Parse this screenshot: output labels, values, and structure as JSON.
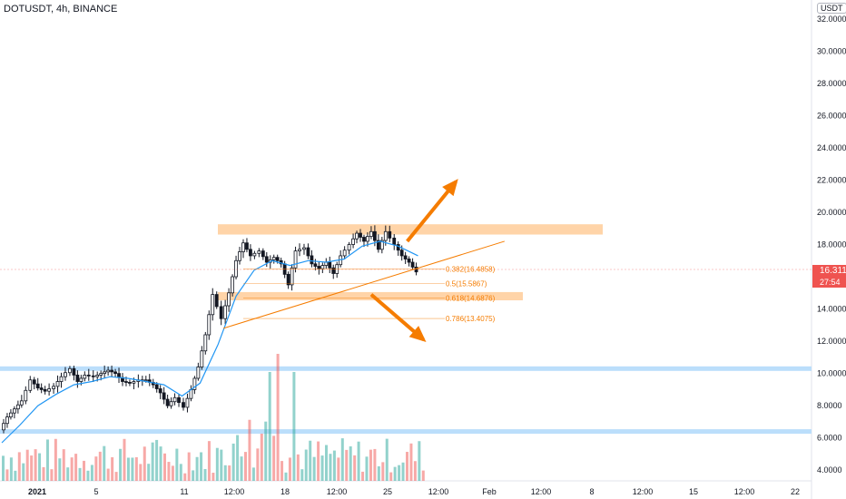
{
  "header": {
    "ticker": "DOTUSDT, 4h, BINANCE"
  },
  "price_axis": {
    "currency_badge": "USDT",
    "current_price": "16.3113",
    "countdown": "27:54",
    "top_label": "32.0000"
  },
  "colors": {
    "up": "#26a69a",
    "down": "#ef5350",
    "ma": "#2196f3",
    "zone": "#ffcc99",
    "support": "#bbdefb",
    "fib": "#f57c00",
    "arrow": "#f57c00"
  },
  "chart_data": {
    "type": "candlestick",
    "symbol": "DOTUSDT",
    "interval": "4h",
    "exchange": "BINANCE",
    "y_ticks": [
      "4.0000",
      "6.0000",
      "8.0000",
      "10.0000",
      "12.0000",
      "14.0000",
      "16.0000",
      "18.0000",
      "20.0000",
      "22.0000",
      "24.0000",
      "26.0000",
      "28.0000",
      "30.0000",
      "32.0000"
    ],
    "x_ticks": [
      "2021",
      "5",
      "11",
      "12:00",
      "18",
      "12:00",
      "25",
      "12:00",
      "Feb",
      "12:00",
      "8",
      "12:00",
      "15",
      "12:00",
      "22"
    ],
    "ylim": [
      3.0,
      33.0
    ],
    "resistance_zone": {
      "from": 18.9,
      "to": 19.2
    },
    "support_zone": {
      "from": 14.65,
      "to": 15.05
    },
    "support_lines": [
      10.3,
      6.4
    ],
    "trendline": {
      "start": {
        "x_day": 12.3,
        "y": 12.8
      },
      "end": {
        "x_day": 27.9,
        "y": 18.2
      }
    },
    "fib_levels": [
      {
        "label": "0.382(16.4858)",
        "value": 16.4858
      },
      {
        "label": "0.5(15.5867)",
        "value": 15.5867
      },
      {
        "label": "0.618(14.6876)",
        "value": 14.6876
      },
      {
        "label": "0.786(13.4075)",
        "value": 13.4075
      }
    ],
    "price_path": [
      [
        0,
        6.5
      ],
      [
        0.4,
        7.3
      ],
      [
        0.8,
        7.8
      ],
      [
        1.2,
        8.3
      ],
      [
        1.7,
        9.6
      ],
      [
        2.1,
        9.1
      ],
      [
        2.5,
        8.9
      ],
      [
        3.0,
        9.2
      ],
      [
        3.4,
        9.8
      ],
      [
        3.9,
        10.3
      ],
      [
        4.3,
        9.5
      ],
      [
        4.7,
        9.9
      ],
      [
        5.2,
        9.8
      ],
      [
        5.6,
        10.0
      ],
      [
        6.0,
        10.2
      ],
      [
        6.4,
        10.0
      ],
      [
        6.8,
        9.5
      ],
      [
        7.2,
        9.4
      ],
      [
        7.7,
        9.6
      ],
      [
        8.1,
        9.6
      ],
      [
        8.5,
        9.3
      ],
      [
        8.9,
        8.8
      ],
      [
        9.3,
        8.0
      ],
      [
        9.7,
        8.5
      ],
      [
        10.2,
        7.9
      ],
      [
        10.6,
        9.0
      ],
      [
        11.0,
        10.4
      ],
      [
        11.4,
        12.4
      ],
      [
        11.8,
        14.9
      ],
      [
        12.3,
        13.4
      ],
      [
        12.7,
        15.0
      ],
      [
        13.1,
        17.0
      ],
      [
        13.5,
        18.1
      ],
      [
        13.9,
        17.3
      ],
      [
        14.4,
        17.6
      ],
      [
        14.8,
        16.9
      ],
      [
        15.2,
        17.2
      ],
      [
        15.6,
        16.8
      ],
      [
        16.0,
        15.5
      ],
      [
        16.4,
        17.6
      ],
      [
        16.9,
        17.8
      ],
      [
        17.3,
        16.8
      ],
      [
        17.7,
        16.5
      ],
      [
        18.1,
        16.9
      ],
      [
        18.5,
        16.2
      ],
      [
        18.9,
        17.3
      ],
      [
        19.4,
        18.0
      ],
      [
        19.8,
        18.7
      ],
      [
        20.2,
        18.2
      ],
      [
        20.6,
        18.8
      ],
      [
        21.0,
        17.7
      ],
      [
        21.4,
        18.8
      ],
      [
        21.9,
        18.0
      ],
      [
        22.3,
        17.3
      ],
      [
        22.7,
        16.9
      ],
      [
        23.1,
        16.3
      ]
    ],
    "ma_path": [
      [
        0,
        5.7
      ],
      [
        1.0,
        6.8
      ],
      [
        2.0,
        8.0
      ],
      [
        3.0,
        8.7
      ],
      [
        4.0,
        9.3
      ],
      [
        5.0,
        9.5
      ],
      [
        6.0,
        9.8
      ],
      [
        7.0,
        9.7
      ],
      [
        8.0,
        9.5
      ],
      [
        9.0,
        9.3
      ],
      [
        10.0,
        8.6
      ],
      [
        11.0,
        9.4
      ],
      [
        12.0,
        11.8
      ],
      [
        13.0,
        14.8
      ],
      [
        14.0,
        16.4
      ],
      [
        15.0,
        17.0
      ],
      [
        16.0,
        16.7
      ],
      [
        17.0,
        17.0
      ],
      [
        18.0,
        16.9
      ],
      [
        19.0,
        17.1
      ],
      [
        20.0,
        17.9
      ],
      [
        21.0,
        18.2
      ],
      [
        22.0,
        17.9
      ],
      [
        23.1,
        17.3
      ]
    ],
    "volume_profile": {
      "count": 105,
      "seed": 7
    },
    "annotations": [
      {
        "kind": "arrow-up",
        "start": {
          "x_day": 22.5,
          "y": 18.2
        },
        "end": {
          "x_day": 25.2,
          "y": 21.9
        }
      },
      {
        "kind": "arrow-down",
        "start": {
          "x_day": 20.5,
          "y": 14.9
        },
        "end": {
          "x_day": 23.4,
          "y": 12.1
        }
      }
    ]
  }
}
